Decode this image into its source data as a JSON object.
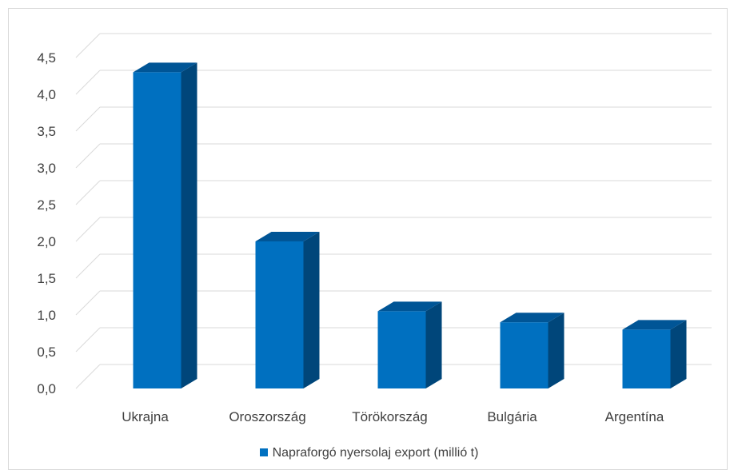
{
  "chart_data": {
    "type": "bar",
    "style": "3d-column",
    "categories": [
      "Ukrajna",
      "Oroszország",
      "Törökország",
      "Bulgária",
      "Argentína"
    ],
    "series": [
      {
        "name": "Napraforgó nyersolaj export (millió t)",
        "values": [
          4.3,
          2.0,
          1.05,
          0.9,
          0.8
        ]
      }
    ],
    "ylim": [
      0,
      4.5
    ],
    "yticks": [
      "0,0",
      "0,5",
      "1,0",
      "1,5",
      "2,0",
      "2,5",
      "3,0",
      "3,5",
      "4,0",
      "4,5"
    ],
    "grid": true,
    "legend_position": "bottom",
    "colors": {
      "bar_front": "#0070c0",
      "bar_side": "#00467a",
      "bar_top": "#005596",
      "grid": "#d9d9d9",
      "text": "#404040"
    }
  }
}
